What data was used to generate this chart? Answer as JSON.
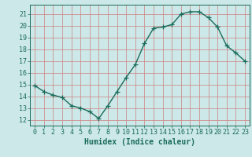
{
  "x": [
    0,
    1,
    2,
    3,
    4,
    5,
    6,
    7,
    8,
    9,
    10,
    11,
    12,
    13,
    14,
    15,
    16,
    17,
    18,
    19,
    20,
    21,
    22,
    23
  ],
  "y": [
    14.9,
    14.4,
    14.1,
    13.9,
    13.2,
    13.0,
    12.7,
    12.1,
    13.2,
    14.4,
    15.6,
    16.7,
    18.5,
    19.8,
    19.9,
    20.1,
    21.0,
    21.2,
    21.2,
    20.7,
    19.9,
    18.3,
    17.7,
    17.0
  ],
  "line_color": "#1a6b5a",
  "marker": "+",
  "marker_size": 4,
  "bg_color": "#cce8e8",
  "grid_color": "#d08080",
  "axis_color": "#1a6b5a",
  "xlabel": "Humidex (Indice chaleur)",
  "xlabel_fontsize": 7,
  "ylim": [
    11.5,
    21.8
  ],
  "xlim": [
    -0.5,
    23.5
  ],
  "yticks": [
    12,
    13,
    14,
    15,
    16,
    17,
    18,
    19,
    20,
    21
  ],
  "xticks": [
    0,
    1,
    2,
    3,
    4,
    5,
    6,
    7,
    8,
    9,
    10,
    11,
    12,
    13,
    14,
    15,
    16,
    17,
    18,
    19,
    20,
    21,
    22,
    23
  ],
  "tick_fontsize": 6,
  "line_width": 1.0
}
